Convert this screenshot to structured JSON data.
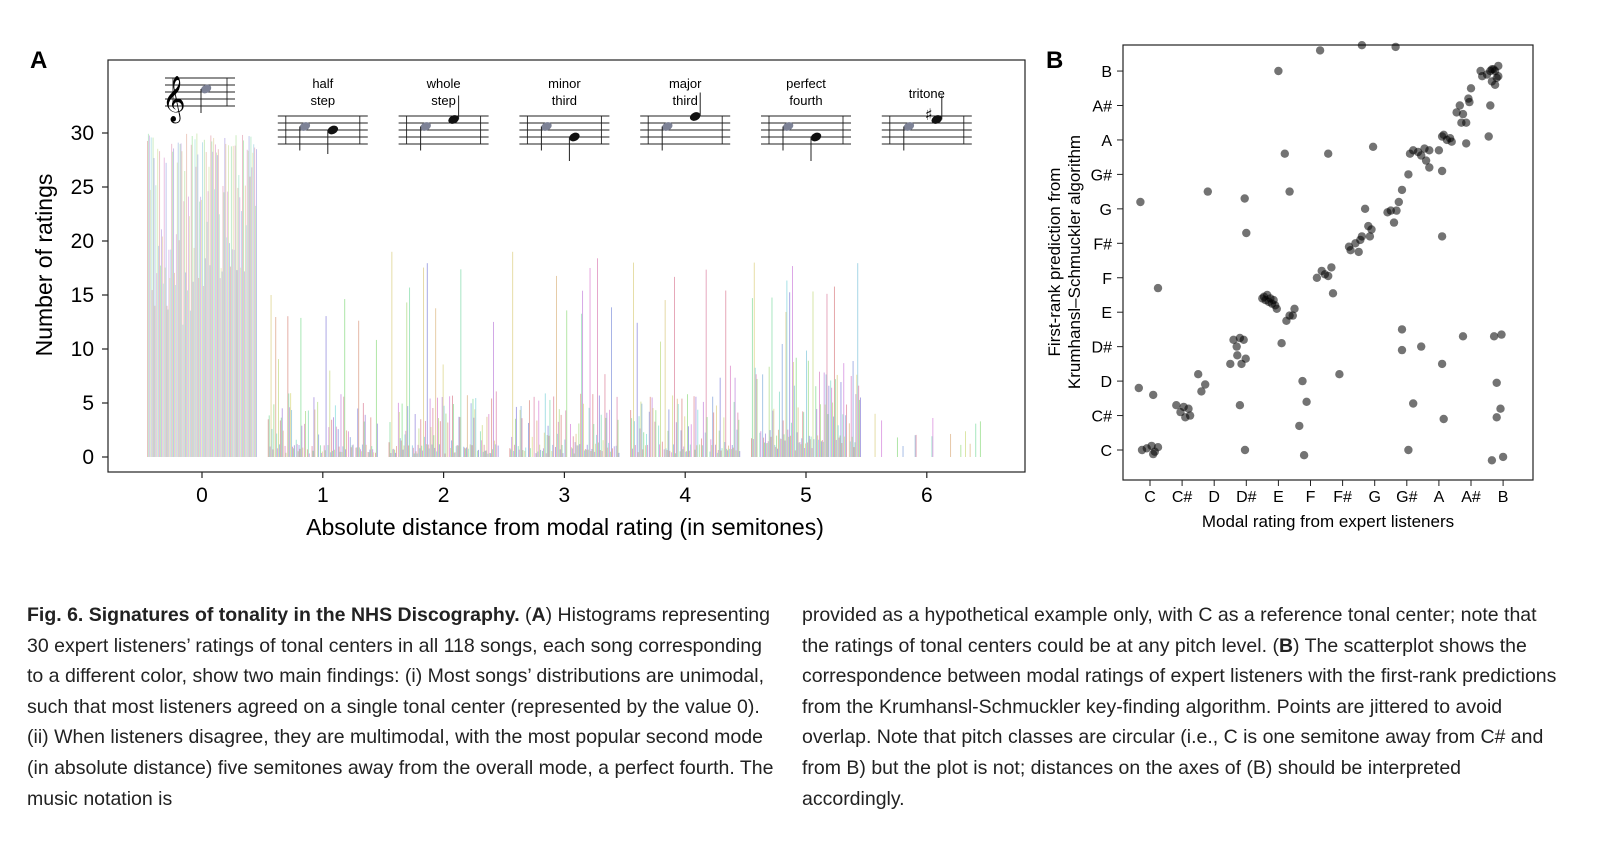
{
  "panel_a": {
    "label": "A",
    "chart_data": {
      "type": "bar",
      "title": "",
      "xlabel": "Absolute distance from modal rating (in semitones)",
      "ylabel": "Number of ratings",
      "x_ticks": [
        "0",
        "1",
        "2",
        "3",
        "4",
        "5",
        "6"
      ],
      "y_ticks": [
        "0",
        "5",
        "10",
        "15",
        "20",
        "25",
        "30"
      ],
      "ylim": [
        0,
        36
      ],
      "xlim": [
        -0.8,
        6.8
      ],
      "series_count": 118,
      "max_per_group": [
        30,
        15,
        19,
        19,
        18,
        18,
        4
      ],
      "notes": "Each song has a bar at each distance, colored per song (118 colors).",
      "interval_labels": [
        {
          "x": 1,
          "line1": "half",
          "line2": "step"
        },
        {
          "x": 2,
          "line1": "whole",
          "line2": "step"
        },
        {
          "x": 3,
          "line1": "minor",
          "line2": "third"
        },
        {
          "x": 4,
          "line1": "major",
          "line2": "third"
        },
        {
          "x": 5,
          "line1": "perfect",
          "line2": "fourth"
        },
        {
          "x": 6,
          "line1": "tritone",
          "line2": ""
        }
      ]
    }
  },
  "panel_b": {
    "label": "B",
    "chart_data": {
      "type": "scatter",
      "title": "",
      "xlabel": "Modal rating from expert listeners",
      "ylabel_line1": "First-rank prediction from",
      "ylabel_line2": "Krumhansl–Schmuckler algorithm",
      "categories": [
        "C",
        "C#",
        "D",
        "D#",
        "E",
        "F",
        "F#",
        "G",
        "G#",
        "A",
        "A#",
        "B"
      ],
      "points": [
        [
          -0.25,
          0.0
        ],
        [
          -0.1,
          0.05
        ],
        [
          0.05,
          0.12
        ],
        [
          0.15,
          -0.05
        ],
        [
          0.25,
          0.08
        ],
        [
          0.1,
          -0.12
        ],
        [
          -0.3,
          7.2
        ],
        [
          0.1,
          1.6
        ],
        [
          0.25,
          4.7
        ],
        [
          -0.35,
          1.8
        ],
        [
          0.82,
          1.3
        ],
        [
          0.95,
          1.1
        ],
        [
          1.05,
          1.25
        ],
        [
          1.1,
          0.95
        ],
        [
          1.2,
          1.2
        ],
        [
          1.25,
          1.0
        ],
        [
          1.5,
          2.2
        ],
        [
          1.6,
          1.7
        ],
        [
          1.72,
          1.9
        ],
        [
          1.8,
          7.5
        ],
        [
          2.5,
          2.5
        ],
        [
          2.6,
          3.2
        ],
        [
          2.7,
          3.0
        ],
        [
          2.72,
          2.75
        ],
        [
          2.8,
          3.25
        ],
        [
          2.85,
          2.5
        ],
        [
          2.92,
          3.2
        ],
        [
          2.98,
          2.65
        ],
        [
          2.8,
          1.3
        ],
        [
          2.95,
          7.3
        ],
        [
          3.0,
          6.3
        ],
        [
          2.96,
          0.0
        ],
        [
          3.5,
          4.4
        ],
        [
          3.6,
          4.35
        ],
        [
          3.65,
          4.5
        ],
        [
          3.7,
          4.3
        ],
        [
          3.75,
          4.4
        ],
        [
          3.8,
          4.25
        ],
        [
          3.85,
          4.35
        ],
        [
          3.9,
          4.2
        ],
        [
          3.95,
          4.1
        ],
        [
          3.55,
          4.45
        ],
        [
          4.1,
          3.1
        ],
        [
          4.25,
          3.75
        ],
        [
          4.35,
          3.9
        ],
        [
          4.45,
          3.9
        ],
        [
          4.5,
          4.1
        ],
        [
          4.0,
          11.0
        ],
        [
          4.2,
          8.6
        ],
        [
          4.35,
          7.5
        ],
        [
          4.65,
          0.7
        ],
        [
          4.75,
          2.0
        ],
        [
          4.88,
          1.4
        ],
        [
          4.8,
          -0.15
        ],
        [
          5.2,
          5.0
        ],
        [
          5.35,
          5.2
        ],
        [
          5.45,
          5.1
        ],
        [
          5.55,
          5.05
        ],
        [
          5.65,
          5.3
        ],
        [
          5.7,
          4.55
        ],
        [
          5.55,
          8.6
        ],
        [
          5.3,
          11.6
        ],
        [
          5.9,
          2.2
        ],
        [
          6.2,
          5.9
        ],
        [
          6.25,
          5.8
        ],
        [
          6.4,
          6.0
        ],
        [
          6.5,
          5.75
        ],
        [
          6.55,
          6.1
        ],
        [
          6.6,
          6.2
        ],
        [
          6.8,
          6.5
        ],
        [
          6.85,
          6.2
        ],
        [
          6.9,
          6.4
        ],
        [
          6.7,
          7.0
        ],
        [
          6.95,
          8.8
        ],
        [
          6.6,
          11.75
        ],
        [
          7.4,
          6.9
        ],
        [
          7.5,
          6.95
        ],
        [
          7.6,
          6.6
        ],
        [
          7.68,
          6.95
        ],
        [
          7.75,
          7.2
        ],
        [
          7.85,
          7.55
        ],
        [
          8.05,
          8.0
        ],
        [
          8.1,
          8.6
        ],
        [
          8.2,
          8.7
        ],
        [
          8.35,
          8.65
        ],
        [
          8.45,
          8.55
        ],
        [
          8.55,
          8.75
        ],
        [
          8.6,
          8.4
        ],
        [
          8.7,
          8.7
        ],
        [
          8.7,
          8.2
        ],
        [
          7.85,
          2.9
        ],
        [
          8.05,
          0.0
        ],
        [
          7.85,
          3.5
        ],
        [
          7.65,
          11.7
        ],
        [
          8.45,
          3.0
        ],
        [
          8.2,
          1.35
        ],
        [
          9.0,
          8.7
        ],
        [
          9.1,
          9.1
        ],
        [
          9.25,
          9.0
        ],
        [
          9.35,
          9.05
        ],
        [
          9.4,
          8.95
        ],
        [
          9.15,
          9.15
        ],
        [
          9.65,
          10.0
        ],
        [
          9.75,
          9.75
        ],
        [
          9.85,
          9.5
        ],
        [
          9.92,
          10.2
        ],
        [
          9.7,
          9.5
        ],
        [
          9.55,
          9.8
        ],
        [
          9.85,
          8.9
        ],
        [
          9.95,
          10.1
        ],
        [
          9.1,
          8.1
        ],
        [
          9.1,
          6.2
        ],
        [
          9.1,
          2.5
        ],
        [
          9.15,
          0.9
        ],
        [
          9.75,
          3.3
        ],
        [
          10.35,
          10.85
        ],
        [
          10.5,
          10.9
        ],
        [
          10.6,
          11.0
        ],
        [
          10.65,
          11.05
        ],
        [
          10.7,
          11.05
        ],
        [
          10.75,
          11.0
        ],
        [
          10.8,
          10.8
        ],
        [
          10.85,
          11.15
        ],
        [
          10.3,
          11.0
        ],
        [
          10.65,
          10.7
        ],
        [
          10.75,
          10.6
        ],
        [
          10.85,
          10.85
        ],
        [
          10.6,
          10.0
        ],
        [
          10.0,
          10.5
        ],
        [
          10.55,
          9.1
        ],
        [
          10.72,
          3.3
        ],
        [
          10.92,
          1.2
        ],
        [
          10.8,
          1.95
        ],
        [
          10.65,
          -0.3
        ],
        [
          10.95,
          3.35
        ],
        [
          10.8,
          0.95
        ],
        [
          11.0,
          -0.2
        ]
      ]
    }
  },
  "caption": {
    "title": "Fig. 6. Signatures of tonality in the NHS Discography.",
    "segments_left": [
      {
        "text": "Fig. 6. Signatures of tonality in the NHS Discography.",
        "bold": true
      },
      {
        "text": " (",
        "bold": false
      },
      {
        "text": "A",
        "bold": true
      },
      {
        "text": ") Histograms representing 30 expert listeners’ ratings of tonal centers in all 118 songs, each song corresponding to a different color, show two main findings: (i) Most songs’ distributions are unimodal, such that most listeners agreed on a single tonal center (represented by the value 0). (ii) When listeners disagree, they are multimodal, with the most popular second mode (in absolute distance) five semitones away from the overall mode, a perfect fourth. The music notation is",
        "bold": false
      }
    ],
    "segments_right": [
      {
        "text": "provided as a hypothetical example only, with C as a reference tonal center; note that the ratings of tonal centers could be at any pitch level. (",
        "bold": false
      },
      {
        "text": "B",
        "bold": true
      },
      {
        "text": ") The scatterplot shows the correspondence between modal ratings of expert listeners with the first-rank predictions from the Krumhansl-Schmuckler key-finding algorithm. Points are jittered to avoid overlap. Note that pitch classes are circular (i.e., C is one semitone away from C# and from B) but the plot is not; distances on the axes of (B) should be interpreted accordingly.",
        "bold": false
      }
    ]
  }
}
